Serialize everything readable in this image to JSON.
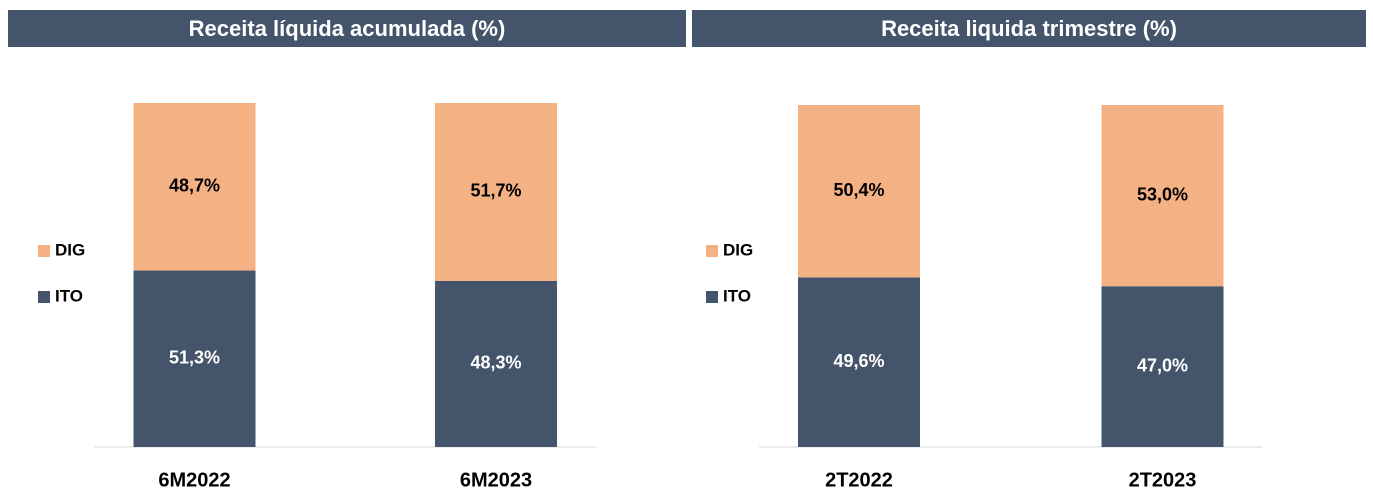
{
  "chart_data": [
    {
      "type": "stacked_bar",
      "title": "Receita líquida acumulada (%)",
      "categories": [
        "6M2022",
        "6M2023"
      ],
      "ylim": [
        0,
        100
      ],
      "series": [
        {
          "name": "ITO",
          "color": "#44546a",
          "values": [
            51.3,
            48.3
          ],
          "value_labels": [
            "51,3%",
            "48,3%"
          ]
        },
        {
          "name": "DIG",
          "color": "#f4b183",
          "values": [
            48.7,
            51.7
          ],
          "value_labels": [
            "48,7%",
            "51,7%"
          ]
        }
      ]
    },
    {
      "type": "stacked_bar",
      "title": "Receita liquida trimestre (%)",
      "categories": [
        "2T2022",
        "2T2023"
      ],
      "ylim": [
        0,
        100
      ],
      "series": [
        {
          "name": "ITO",
          "color": "#44546a",
          "values": [
            49.6,
            47.0
          ],
          "value_labels": [
            "49,6%",
            "47,0%"
          ]
        },
        {
          "name": "DIG",
          "color": "#f4b183",
          "values": [
            50.4,
            53.0
          ],
          "value_labels": [
            "50,4%",
            "53,0%"
          ]
        }
      ]
    }
  ]
}
